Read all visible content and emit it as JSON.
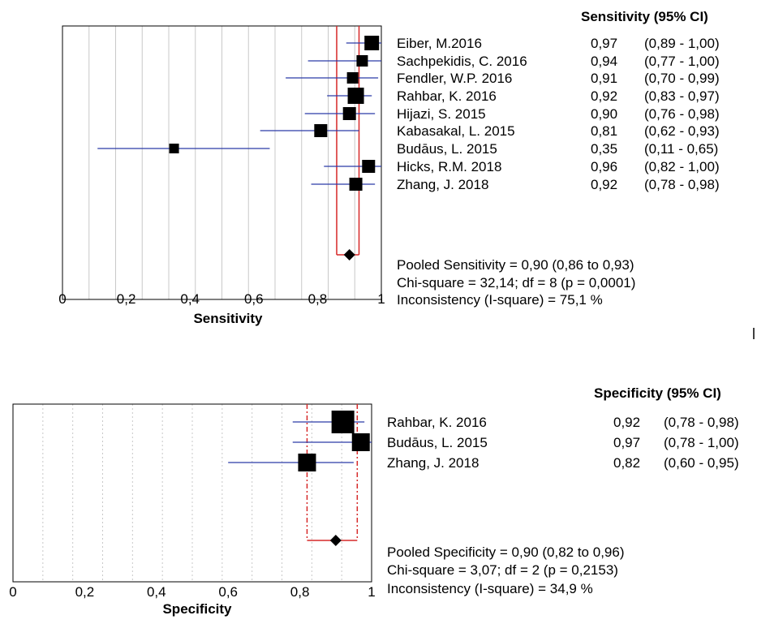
{
  "chart_data": [
    {
      "type": "forest",
      "xlabel": "Sensitivity",
      "xlim": [
        0,
        1
      ],
      "ticks": [
        {
          "value": 0,
          "label": "0"
        },
        {
          "value": 0.2,
          "label": "0,2"
        },
        {
          "value": 0.4,
          "label": "0,4"
        },
        {
          "value": 0.6,
          "label": "0,6"
        },
        {
          "value": 0.8,
          "label": "0,8"
        },
        {
          "value": 1,
          "label": "1"
        }
      ],
      "grid": true,
      "column_header": "Sensitivity (95% CI)",
      "studies": [
        {
          "name": "Eiber, M.2016",
          "estimate": 0.97,
          "lower": 0.89,
          "upper": 1.0,
          "value_text": "0,97",
          "ci_text": "(0,89 - 1,00)"
        },
        {
          "name": "Sachpekidis, C. 2016",
          "estimate": 0.94,
          "lower": 0.77,
          "upper": 1.0,
          "value_text": "0,94",
          "ci_text": "(0,77 - 1,00)"
        },
        {
          "name": "Fendler, W.P. 2016",
          "estimate": 0.91,
          "lower": 0.7,
          "upper": 0.99,
          "value_text": "0,91",
          "ci_text": "(0,70 - 0,99)"
        },
        {
          "name": "Rahbar, K. 2016",
          "estimate": 0.92,
          "lower": 0.83,
          "upper": 0.97,
          "value_text": "0,92",
          "ci_text": "(0,83 - 0,97)"
        },
        {
          "name": "Hijazi, S. 2015",
          "estimate": 0.9,
          "lower": 0.76,
          "upper": 0.98,
          "value_text": "0,90",
          "ci_text": "(0,76 - 0,98)"
        },
        {
          "name": "Kabasakal, L. 2015",
          "estimate": 0.81,
          "lower": 0.62,
          "upper": 0.93,
          "value_text": "0,81",
          "ci_text": "(0,62 - 0,93)"
        },
        {
          "name": "Budāus, L. 2015",
          "estimate": 0.35,
          "lower": 0.11,
          "upper": 0.65,
          "value_text": "0,35",
          "ci_text": "(0,11 - 0,65)"
        },
        {
          "name": "Hicks, R.M. 2018",
          "estimate": 0.96,
          "lower": 0.82,
          "upper": 1.0,
          "value_text": "0,96",
          "ci_text": "(0,82 - 1,00)"
        },
        {
          "name": "Zhang, J. 2018",
          "estimate": 0.92,
          "lower": 0.78,
          "upper": 0.98,
          "value_text": "0,92",
          "ci_text": "(0,78 - 0,98)"
        }
      ],
      "pooled": {
        "estimate": 0.9,
        "lower": 0.86,
        "upper": 0.93
      },
      "pooled_band_style": "solid",
      "notes": [
        "Pooled Sensitivity = 0,90 (0,86 to 0,93)",
        "Chi-square = 32,14; df =  8 (p = 0,0001)",
        "Inconsistency (I-square) = 75,1 %"
      ]
    },
    {
      "type": "forest",
      "xlabel": "Specificity",
      "xlim": [
        0,
        1
      ],
      "ticks": [
        {
          "value": 0,
          "label": "0"
        },
        {
          "value": 0.2,
          "label": "0,2"
        },
        {
          "value": 0.4,
          "label": "0,4"
        },
        {
          "value": 0.6,
          "label": "0,6"
        },
        {
          "value": 0.8,
          "label": "0,8"
        },
        {
          "value": 1,
          "label": "1"
        }
      ],
      "grid": true,
      "column_header": "Specificity (95% CI)",
      "studies": [
        {
          "name": "Rahbar, K. 2016",
          "estimate": 0.92,
          "lower": 0.78,
          "upper": 0.98,
          "value_text": "0,92",
          "ci_text": "(0,78 - 0,98)"
        },
        {
          "name": "Budāus, L. 2015",
          "estimate": 0.97,
          "lower": 0.78,
          "upper": 1.0,
          "value_text": "0,97",
          "ci_text": "(0,78 - 1,00)"
        },
        {
          "name": "Zhang, J. 2018",
          "estimate": 0.82,
          "lower": 0.6,
          "upper": 0.95,
          "value_text": "0,82",
          "ci_text": "(0,60 - 0,95)"
        }
      ],
      "pooled": {
        "estimate": 0.9,
        "lower": 0.82,
        "upper": 0.96
      },
      "pooled_band_style": "dashed",
      "notes": [
        "Pooled Specificity = 0,90 (0,82 to 0,96)",
        "Chi-square = 3,07; df =  2 (p = 0,2153)",
        "Inconsistency (I-square) = 34,9 %"
      ]
    }
  ],
  "colors": {
    "ci_line": "#2b3aa8",
    "pooled_band": "#d62828",
    "marker": "#000000",
    "grid": "#c8c8c8"
  }
}
